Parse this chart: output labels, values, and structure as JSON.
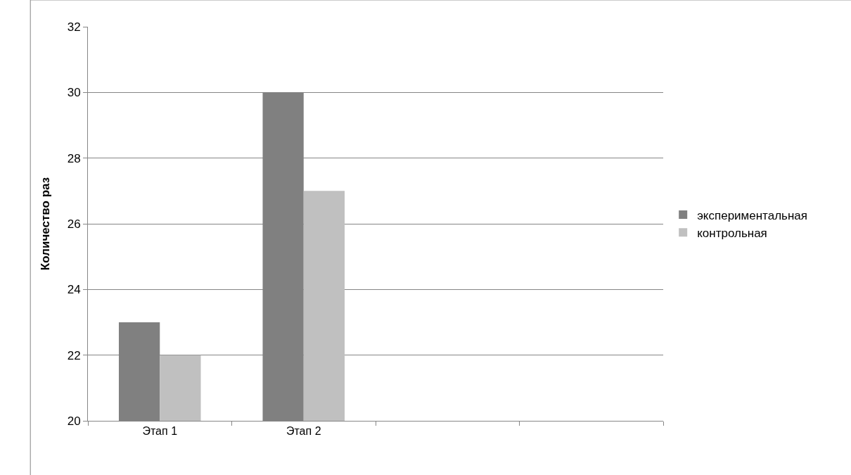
{
  "chart_data": {
    "type": "bar",
    "ylabel": "Количество раз",
    "categories": [
      "Этап 1",
      "Этап 2",
      null,
      null
    ],
    "series": [
      {
        "name": "экспериментальная",
        "color": "#808080",
        "values": [
          23,
          30,
          null,
          null
        ]
      },
      {
        "name": "контрольная",
        "color": "#c0c0c0",
        "values": [
          22,
          27,
          null,
          null
        ]
      }
    ],
    "ylim": [
      20,
      32
    ],
    "yticks": [
      20,
      22,
      24,
      26,
      28,
      30,
      32
    ],
    "grid": "y",
    "legend": "right"
  }
}
